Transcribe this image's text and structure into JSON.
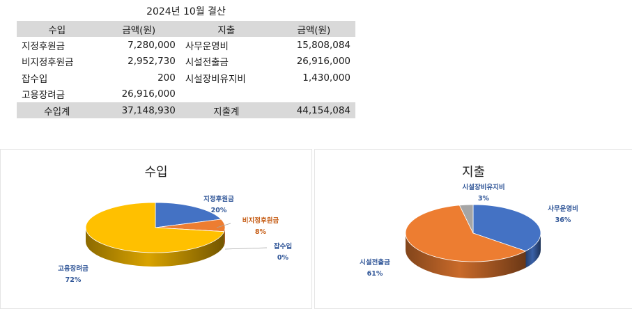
{
  "sheet": {
    "title": "2024년 10월 결산",
    "headers": [
      "수입",
      "금액(원)",
      "지출",
      "금액(원)"
    ],
    "rows": [
      [
        "지정후원금",
        "7,280,000",
        "사무운영비",
        "15,808,084"
      ],
      [
        "비지정후원금",
        "2,952,730",
        "시설전출금",
        "26,916,000"
      ],
      [
        "잡수입",
        "200",
        "시설장비유지비",
        "1,430,000"
      ],
      [
        "고용장려금",
        "26,916,000",
        "",
        ""
      ]
    ],
    "totals": [
      "수입계",
      "37,148,930",
      "지출계",
      "44,154,084"
    ]
  },
  "chart_data": [
    {
      "type": "pie",
      "title": "수입",
      "categories": [
        "지정후원금",
        "비지정후원금",
        "잡수입",
        "고용장려금"
      ],
      "values": [
        7280000,
        2952730,
        200,
        26916000
      ],
      "percent_labels": [
        "20%",
        "8%",
        "0%",
        "72%"
      ],
      "colors": [
        "#4472c4",
        "#ed7d31",
        "#a5a5a5",
        "#ffc000"
      ],
      "label_colors": [
        "#2f5597",
        "#c55a11",
        "#2f5597",
        "#2f5597"
      ],
      "style": "3d"
    },
    {
      "type": "pie",
      "title": "지출",
      "categories": [
        "사무운영비",
        "시설전출금",
        "시설장비유지비"
      ],
      "values": [
        15808084,
        26916000,
        1430000
      ],
      "percent_labels": [
        "36%",
        "61%",
        "3%"
      ],
      "colors": [
        "#4472c4",
        "#ed7d31",
        "#a5a5a5"
      ],
      "label_colors": [
        "#2f5597",
        "#2f5597",
        "#2f5597"
      ],
      "style": "3d"
    }
  ]
}
